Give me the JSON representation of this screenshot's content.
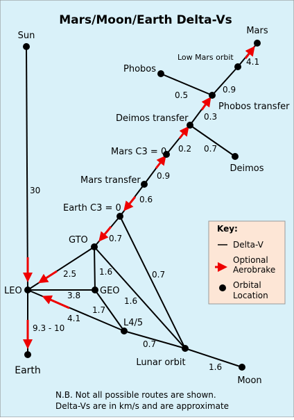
{
  "title": "Mars/Moon/Earth Delta-Vs",
  "nodes": [
    "Sun",
    "LEO",
    "Earth",
    "GTO",
    "GEO",
    "L4/5",
    "Lunar orbit",
    "Moon",
    "Earth C3 = 0",
    "Mars transfer",
    "Mars C3 = 0",
    "Deimos transfer",
    "Deimos",
    "Phobos transfer",
    "Phobos",
    "Low Mars orbit",
    "Mars"
  ],
  "edges": [
    "30",
    "9.3 - 10",
    "2.5",
    "3.8",
    "4.1",
    "1.6",
    "1.7",
    "1.6",
    "0.7",
    "0.7",
    "0.7",
    "1.6",
    "0.6",
    "0.9",
    "0.2",
    "0.7",
    "0.3",
    "0.5",
    "0.9",
    "4.1"
  ],
  "key": {
    "title": "Key:",
    "items": [
      {
        "lines": [
          "Delta-V"
        ]
      },
      {
        "lines": [
          "Optional",
          "Aerobrake"
        ]
      },
      {
        "lines": [
          "Orbital",
          "Location"
        ]
      }
    ]
  },
  "footnote": [
    "N.B. Not all possible routes are shown.",
    "Delta-Vs are in km/s and are approximate"
  ]
}
